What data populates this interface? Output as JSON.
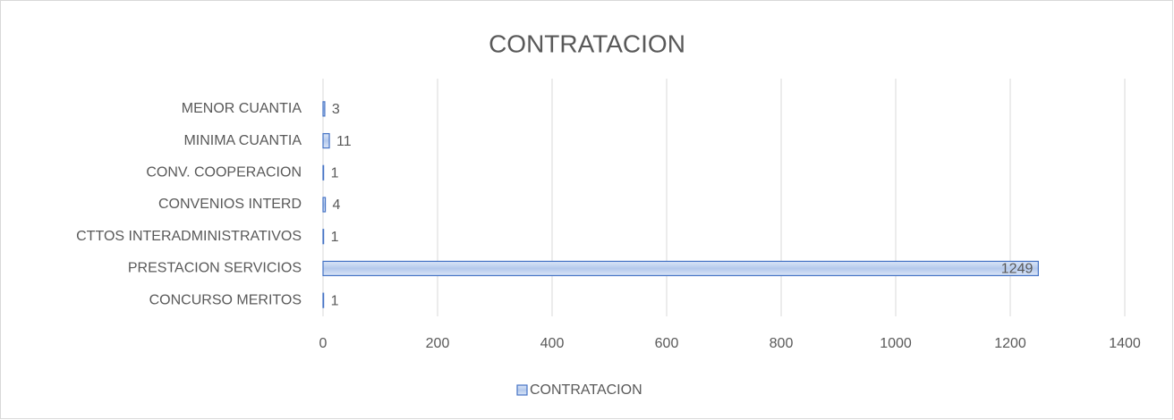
{
  "chart_data": {
    "type": "hbar",
    "title": "CONTRATACION",
    "categories": [
      "MENOR CUANTIA",
      "MINIMA CUANTIA",
      "CONV. COOPERACION",
      "CONVENIOS INTERD",
      "CTTOS INTERADMINISTRATIVOS",
      "PRESTACION SERVICIOS",
      "CONCURSO MERITOS"
    ],
    "series": [
      {
        "name": "CONTRATACION",
        "color": "#4472c4",
        "values": [
          3,
          11,
          1,
          4,
          1,
          1249,
          1
        ]
      }
    ],
    "xlim": [
      0,
      1400
    ],
    "xticks": [
      0,
      200,
      400,
      600,
      800,
      1000,
      1200,
      1400
    ],
    "grid": true,
    "legend": "bottom"
  }
}
